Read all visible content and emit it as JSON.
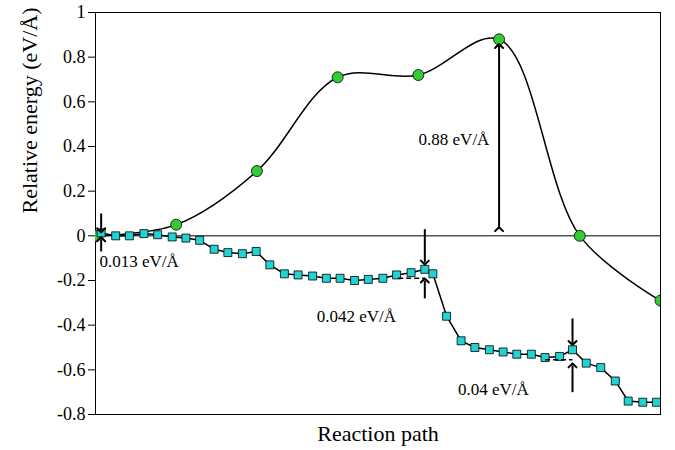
{
  "chart_data": {
    "type": "line",
    "x_label": "Reaction path",
    "y_label": "Relative energy (eV/Å)",
    "xlim": [
      0,
      7
    ],
    "ylim": [
      -0.8,
      1
    ],
    "yticks": [
      -0.8,
      -0.6,
      -0.4,
      -0.2,
      0,
      0.2,
      0.4,
      0.6,
      0.8,
      1
    ],
    "tick_labels": "y",
    "grid": false,
    "series": [
      {
        "type": "spline",
        "color": "#33cc33",
        "marker": "circle",
        "line_style": "solid",
        "x": [
          0,
          1,
          2,
          3,
          4,
          5,
          6,
          7
        ],
        "values": [
          0,
          0.05,
          0.29,
          0.71,
          0.72,
          0.88,
          0,
          -0.29
        ]
      },
      {
        "type": "line",
        "color": "#22d3d3",
        "marker": "square",
        "line_style": "solid",
        "x": [
          0.07,
          0.25,
          0.42,
          0.6,
          0.77,
          0.95,
          1.12,
          1.29,
          1.47,
          1.64,
          1.82,
          1.99,
          2.16,
          2.34,
          2.51,
          2.69,
          2.86,
          3.03,
          3.21,
          3.38,
          3.56,
          3.73,
          3.91,
          4.08,
          4.18,
          4.35,
          4.53,
          4.7,
          4.88,
          5.05,
          5.22,
          5.4,
          5.57,
          5.75,
          5.91,
          6.08,
          6.26,
          6.44,
          6.6,
          6.78,
          6.95
        ],
        "values": [
          0.013,
          0.0,
          0.0,
          0.01,
          0.005,
          -0.005,
          -0.01,
          -0.02,
          -0.06,
          -0.075,
          -0.08,
          -0.07,
          -0.13,
          -0.17,
          -0.175,
          -0.18,
          -0.19,
          -0.19,
          -0.2,
          -0.195,
          -0.19,
          -0.175,
          -0.165,
          -0.15,
          -0.17,
          -0.36,
          -0.47,
          -0.5,
          -0.51,
          -0.52,
          -0.53,
          -0.53,
          -0.545,
          -0.54,
          -0.51,
          -0.57,
          -0.59,
          -0.65,
          -0.74,
          -0.745,
          -0.745
        ]
      }
    ],
    "annotations": [
      "0.013 eV/Å",
      "0.042 eV/Å",
      "0.04 eV/Å",
      "0.88 eV/Å"
    ]
  }
}
